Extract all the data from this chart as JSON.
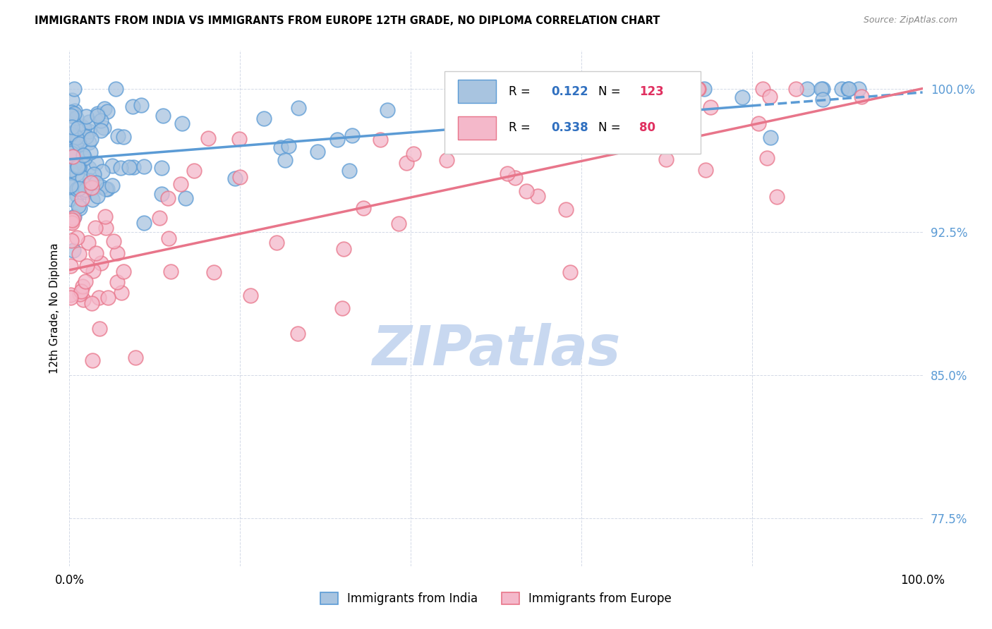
{
  "title": "IMMIGRANTS FROM INDIA VS IMMIGRANTS FROM EUROPE 12TH GRADE, NO DIPLOMA CORRELATION CHART",
  "source_text": "Source: ZipAtlas.com",
  "ylabel": "12th Grade, No Diploma",
  "ytick_labels": [
    "77.5%",
    "85.0%",
    "92.5%",
    "100.0%"
  ],
  "ytick_values": [
    0.775,
    0.85,
    0.925,
    1.0
  ],
  "blue_color": "#5b9bd5",
  "pink_color": "#e8758a",
  "blue_fill": "#a8c4e0",
  "pink_fill": "#f4b8ca",
  "background_color": "#ffffff",
  "watermark_text": "ZIPatlas",
  "watermark_color": "#c8d8f0",
  "R_N_color": "#3070c0",
  "N_val_color": "#e03060",
  "legend_R_blue": "0.122",
  "legend_N_blue": "123",
  "legend_R_pink": "0.338",
  "legend_N_pink": "80",
  "blue_reg_intercept": 0.963,
  "blue_reg_slope": 0.00035,
  "pink_reg_intercept": 0.905,
  "pink_reg_slope": 0.00095,
  "seed": 42
}
